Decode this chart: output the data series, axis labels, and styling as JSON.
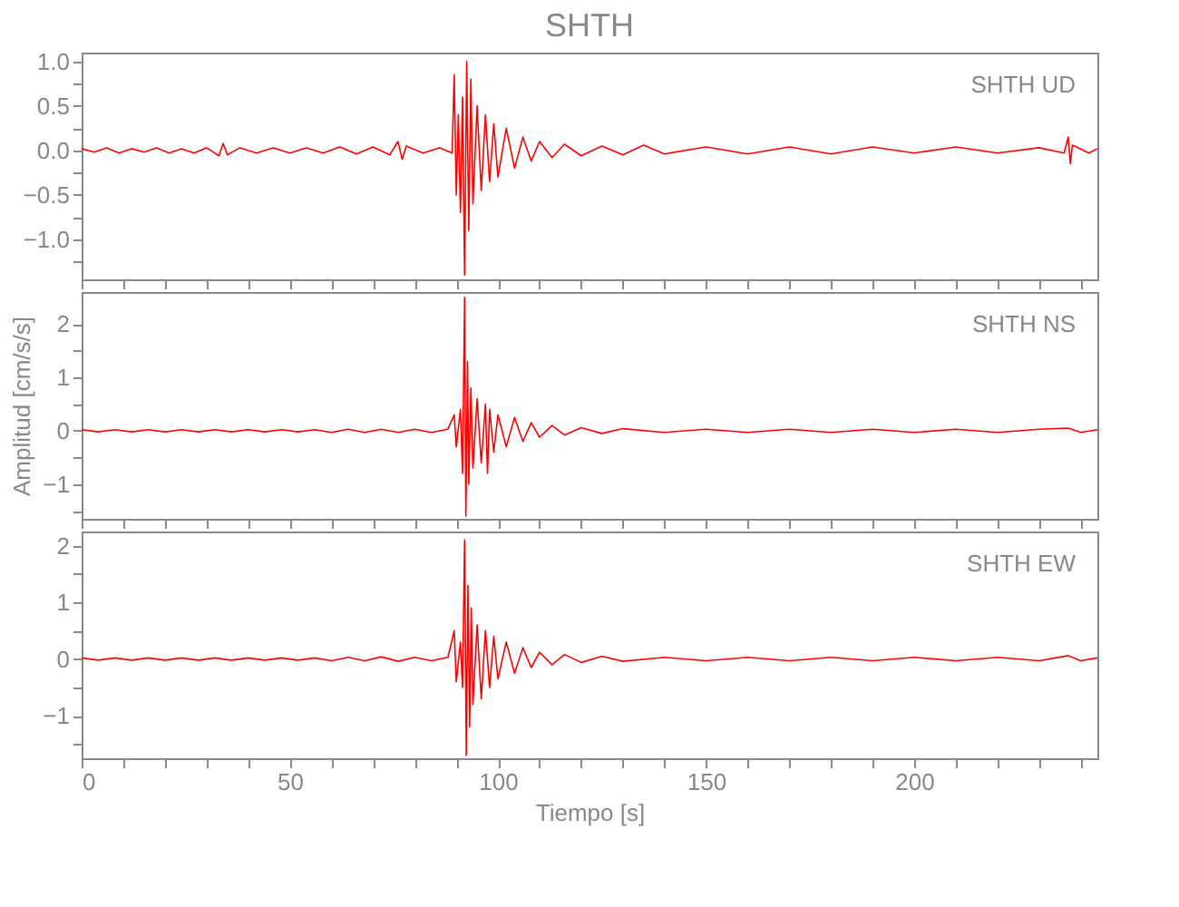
{
  "chart_data": [
    {
      "type": "line",
      "title": "SHTH",
      "annotations": [
        "SHTH   UD"
      ],
      "tick_labels": "y",
      "grid": false,
      "xlim": [
        0,
        244
      ],
      "xticks": [
        0,
        {
          "value": 10,
          "label": null
        },
        {
          "value": 20,
          "label": null
        },
        {
          "value": 30,
          "label": null
        },
        {
          "value": 40,
          "label": null
        },
        50,
        {
          "value": 60,
          "label": null
        },
        {
          "value": 70,
          "label": null
        },
        {
          "value": 80,
          "label": null
        },
        {
          "value": 90,
          "label": null
        },
        100,
        {
          "value": 110,
          "label": null
        },
        {
          "value": 120,
          "label": null
        },
        {
          "value": 130,
          "label": null
        },
        {
          "value": 140,
          "label": null
        },
        150,
        {
          "value": 160,
          "label": null
        },
        {
          "value": 170,
          "label": null
        },
        {
          "value": 180,
          "label": null
        },
        {
          "value": 190,
          "label": null
        },
        200,
        {
          "value": 210,
          "label": null
        },
        {
          "value": 220,
          "label": null
        },
        {
          "value": 230,
          "label": null
        },
        {
          "value": 240,
          "label": null
        }
      ],
      "ylim": [
        -1.45,
        1.1
      ],
      "yticks": [
        {
          "value": -1.25,
          "label": null
        },
        {
          "value": -1.0,
          "label": "−1.0"
        },
        {
          "value": -0.75,
          "label": null
        },
        {
          "value": -0.5,
          "label": "−0.5"
        },
        {
          "value": -0.25,
          "label": null
        },
        {
          "value": 0,
          "label": "0.0"
        },
        {
          "value": 0.25,
          "label": null
        },
        {
          "value": 0.5,
          "label": "0.5"
        },
        {
          "value": 0.75,
          "label": null
        },
        {
          "value": 1.0,
          "label": "1.0"
        }
      ],
      "series": [
        {
          "color": "#ff0000",
          "x": [
            0,
            3,
            6,
            9,
            12,
            15,
            18,
            21,
            24,
            27,
            30,
            33,
            34,
            35,
            38,
            42,
            46,
            50,
            54,
            58,
            62,
            66,
            70,
            74,
            76,
            77,
            78,
            82,
            86,
            89,
            89.5,
            90,
            90.5,
            91,
            91.5,
            92,
            92.5,
            93,
            93.5,
            94,
            95,
            96,
            97,
            98,
            99,
            100,
            102,
            104,
            106,
            108,
            110,
            113,
            116,
            120,
            125,
            130,
            135,
            140,
            150,
            160,
            170,
            180,
            190,
            200,
            210,
            220,
            230,
            236,
            237,
            237.5,
            238,
            242,
            244
          ],
          "values": [
            0.02,
            -0.02,
            0.03,
            -0.03,
            0.02,
            -0.02,
            0.03,
            -0.03,
            0.02,
            -0.03,
            0.03,
            -0.06,
            0.08,
            -0.05,
            0.03,
            -0.03,
            0.03,
            -0.03,
            0.03,
            -0.03,
            0.04,
            -0.04,
            0.04,
            -0.05,
            0.1,
            -0.1,
            0.05,
            -0.03,
            0.03,
            -0.03,
            0.85,
            -0.5,
            0.4,
            -0.7,
            0.6,
            -1.4,
            1.0,
            -0.9,
            0.8,
            -0.6,
            0.5,
            -0.45,
            0.4,
            -0.35,
            0.3,
            -0.3,
            0.25,
            -0.2,
            0.15,
            -0.12,
            0.1,
            -0.08,
            0.07,
            -0.06,
            0.05,
            -0.05,
            0.06,
            -0.04,
            0.04,
            -0.04,
            0.04,
            -0.04,
            0.04,
            -0.03,
            0.04,
            -0.03,
            0.03,
            -0.03,
            0.15,
            -0.15,
            0.06,
            -0.03,
            0.02
          ]
        }
      ]
    },
    {
      "type": "line",
      "ylabel": "Amplitud [cm/s/s]",
      "annotations": [
        "SHTH   NS"
      ],
      "tick_labels": "y",
      "grid": false,
      "xlim": [
        0,
        244
      ],
      "xticks": [
        0,
        {
          "value": 10,
          "label": null
        },
        {
          "value": 20,
          "label": null
        },
        {
          "value": 30,
          "label": null
        },
        {
          "value": 40,
          "label": null
        },
        50,
        {
          "value": 60,
          "label": null
        },
        {
          "value": 70,
          "label": null
        },
        {
          "value": 80,
          "label": null
        },
        {
          "value": 90,
          "label": null
        },
        100,
        {
          "value": 110,
          "label": null
        },
        {
          "value": 120,
          "label": null
        },
        {
          "value": 130,
          "label": null
        },
        {
          "value": 140,
          "label": null
        },
        150,
        {
          "value": 160,
          "label": null
        },
        {
          "value": 170,
          "label": null
        },
        {
          "value": 180,
          "label": null
        },
        {
          "value": 190,
          "label": null
        },
        200,
        {
          "value": 210,
          "label": null
        },
        {
          "value": 220,
          "label": null
        },
        {
          "value": 230,
          "label": null
        },
        {
          "value": 240,
          "label": null
        }
      ],
      "ylim": [
        -1.65,
        2.6
      ],
      "yticks": [
        {
          "value": -1.5,
          "label": null
        },
        {
          "value": -1,
          "label": "−1"
        },
        {
          "value": -0.5,
          "label": null
        },
        0,
        {
          "value": 0.5,
          "label": null
        },
        1,
        {
          "value": 1.5,
          "label": null
        },
        2
      ],
      "series": [
        {
          "color": "#ff0000",
          "x": [
            0,
            4,
            8,
            12,
            16,
            20,
            24,
            28,
            32,
            36,
            40,
            44,
            48,
            52,
            56,
            60,
            64,
            68,
            72,
            76,
            80,
            84,
            88,
            89.5,
            90,
            91,
            91.5,
            92,
            92.3,
            92.7,
            93,
            93.5,
            94,
            95,
            96,
            97,
            97.5,
            98,
            99,
            100,
            102,
            104,
            106,
            108,
            110,
            113,
            116,
            120,
            125,
            130,
            140,
            150,
            160,
            170,
            180,
            190,
            200,
            210,
            220,
            230,
            237,
            240,
            244
          ],
          "values": [
            0.02,
            -0.02,
            0.02,
            -0.02,
            0.02,
            -0.02,
            0.02,
            -0.02,
            0.02,
            -0.02,
            0.02,
            -0.02,
            0.02,
            -0.02,
            0.02,
            -0.03,
            0.03,
            -0.03,
            0.03,
            -0.03,
            0.03,
            -0.03,
            0.03,
            0.3,
            -0.3,
            0.4,
            -0.8,
            2.5,
            -1.6,
            1.3,
            -1.0,
            0.8,
            -0.7,
            0.6,
            -0.6,
            0.5,
            -0.8,
            0.4,
            -0.4,
            0.3,
            -0.3,
            0.25,
            -0.2,
            0.15,
            -0.12,
            0.1,
            -0.08,
            0.06,
            -0.05,
            0.04,
            -0.03,
            0.03,
            -0.03,
            0.03,
            -0.03,
            0.03,
            -0.03,
            0.03,
            -0.03,
            0.03,
            0.05,
            -0.03,
            0.02
          ]
        }
      ]
    },
    {
      "type": "line",
      "xlabel": "Tiempo [s]",
      "annotations": [
        "SHTH   EW"
      ],
      "grid": false,
      "xlim": [
        0,
        244
      ],
      "xticks": [
        0,
        {
          "value": 10,
          "label": null
        },
        {
          "value": 20,
          "label": null
        },
        {
          "value": 30,
          "label": null
        },
        {
          "value": 40,
          "label": null
        },
        50,
        {
          "value": 60,
          "label": null
        },
        {
          "value": 70,
          "label": null
        },
        {
          "value": 80,
          "label": null
        },
        {
          "value": 90,
          "label": null
        },
        100,
        {
          "value": 110,
          "label": null
        },
        {
          "value": 120,
          "label": null
        },
        {
          "value": 130,
          "label": null
        },
        {
          "value": 140,
          "label": null
        },
        150,
        {
          "value": 160,
          "label": null
        },
        {
          "value": 170,
          "label": null
        },
        {
          "value": 180,
          "label": null
        },
        {
          "value": 190,
          "label": null
        },
        200,
        {
          "value": 210,
          "label": null
        },
        {
          "value": 220,
          "label": null
        },
        {
          "value": 230,
          "label": null
        },
        {
          "value": 240,
          "label": null
        }
      ],
      "ylim": [
        -1.75,
        2.25
      ],
      "yticks": [
        {
          "value": -1.5,
          "label": null
        },
        {
          "value": -1,
          "label": "−1"
        },
        {
          "value": -0.5,
          "label": null
        },
        0,
        {
          "value": 0.5,
          "label": null
        },
        1,
        {
          "value": 1.5,
          "label": null
        },
        2
      ],
      "series": [
        {
          "color": "#ff0000",
          "x": [
            0,
            4,
            8,
            12,
            16,
            20,
            24,
            28,
            32,
            36,
            40,
            44,
            48,
            52,
            56,
            60,
            64,
            68,
            72,
            76,
            80,
            84,
            88,
            89.5,
            90,
            91,
            91.5,
            92,
            92.4,
            92.8,
            93.2,
            93.6,
            94,
            95,
            96,
            97,
            98,
            99,
            100,
            102,
            104,
            106,
            108,
            110,
            113,
            116,
            120,
            125,
            130,
            140,
            150,
            160,
            170,
            180,
            190,
            200,
            210,
            220,
            230,
            237,
            240,
            244
          ],
          "values": [
            0.02,
            -0.02,
            0.02,
            -0.02,
            0.02,
            -0.02,
            0.02,
            -0.02,
            0.02,
            -0.02,
            0.02,
            -0.02,
            0.02,
            -0.02,
            0.02,
            -0.03,
            0.03,
            -0.03,
            0.04,
            -0.04,
            0.03,
            -0.03,
            0.03,
            0.5,
            -0.4,
            0.3,
            -0.5,
            2.1,
            -1.7,
            1.3,
            -1.2,
            0.9,
            -0.8,
            0.6,
            -0.7,
            0.5,
            -0.5,
            0.4,
            -0.35,
            0.3,
            -0.25,
            0.2,
            -0.15,
            0.12,
            -0.1,
            0.08,
            -0.06,
            0.05,
            -0.04,
            0.03,
            -0.03,
            0.03,
            -0.03,
            0.03,
            -0.03,
            0.03,
            -0.03,
            0.03,
            -0.03,
            0.06,
            -0.03,
            0.02
          ]
        }
      ]
    }
  ]
}
